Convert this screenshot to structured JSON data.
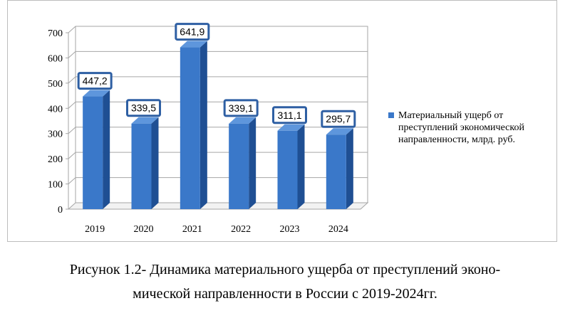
{
  "chart_data": {
    "type": "bar",
    "categories": [
      "2019",
      "2020",
      "2021",
      "2022",
      "2023",
      "2024"
    ],
    "series": [
      {
        "name": "Материальный ущерб от преступлений экономической направленности, млрд. руб.",
        "values": [
          447.2,
          339.5,
          641.9,
          339.1,
          311.1,
          295.7
        ],
        "data_labels": [
          "447,2",
          "339,5",
          "641,9",
          "339,1",
          "311,1",
          "295,7"
        ]
      }
    ],
    "y_ticks": [
      "0",
      "100",
      "200",
      "300",
      "400",
      "500",
      "600",
      "700"
    ],
    "ylim": [
      0,
      700
    ],
    "grid": true,
    "style": "3d",
    "legend_position": "right",
    "colors": {
      "bar": "#3a78c9",
      "bar_side": "#1f4f93",
      "bar_top": "#5e96dc",
      "label_border": "#2e5fa3",
      "grid": "#a6a6a6"
    }
  },
  "caption": {
    "line1": "Рисунок 1.2- Динамика материального ущерба от преступлений эконо-",
    "line2": "мической направленности в России с 2019-2024гг."
  }
}
